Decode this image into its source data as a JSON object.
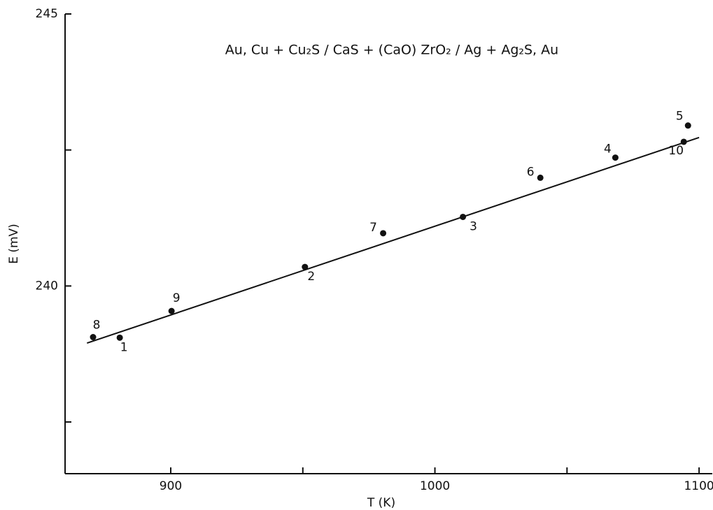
{
  "chart_data": {
    "type": "scatter",
    "annotation": "Au, Cu + Cu₂S / CaS + (CaO) ZrO₂ / Ag + Ag₂S, Au",
    "xlabel": "T (K)",
    "ylabel": "E (mV)",
    "x": [
      880.7,
      950.8,
      1010.6,
      1068.3,
      1095.8,
      1039.9,
      980.4,
      870.6,
      900.3,
      1094.2
    ],
    "values": [
      239.05,
      240.35,
      241.27,
      242.36,
      242.95,
      241.99,
      240.97,
      239.06,
      239.54,
      242.65
    ],
    "point_labels": [
      "1",
      "2",
      "3",
      "4",
      "5",
      "6",
      "7",
      "8",
      "9",
      "10"
    ],
    "color": "#111111",
    "fit_line": {
      "x": [
        868.3,
        1100
      ],
      "values": [
        238.95,
        242.73
      ]
    },
    "xlim": [
      860,
      1105
    ],
    "ylim": [
      236.55,
      245
    ],
    "xticks": [
      900,
      1000,
      1100
    ],
    "xminorticks": [
      950,
      1050
    ],
    "yticks": [
      240,
      245
    ],
    "yminorticks": [
      237.5,
      242.5
    ]
  }
}
